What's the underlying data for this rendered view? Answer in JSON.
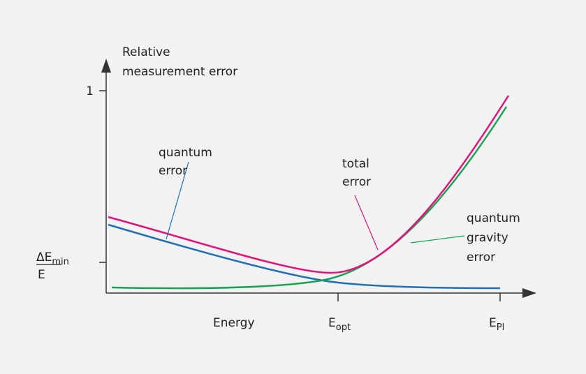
{
  "y_axis_label": [
    "Relative",
    "measurement error"
  ],
  "y_ticks": {
    "top": "1",
    "min": {
      "numerator": "ΔE",
      "numerator_sub": "min",
      "denominator": "E"
    }
  },
  "x_axis_label": "Energy",
  "x_ticks": [
    {
      "base": "E",
      "sub": "opt"
    },
    {
      "base": "E",
      "sub": "Pl"
    }
  ],
  "curves": {
    "quantum": [
      "quantum",
      "error"
    ],
    "total": [
      "total",
      "error"
    ],
    "gravity": [
      "quantum",
      "gravity",
      "error"
    ]
  }
}
